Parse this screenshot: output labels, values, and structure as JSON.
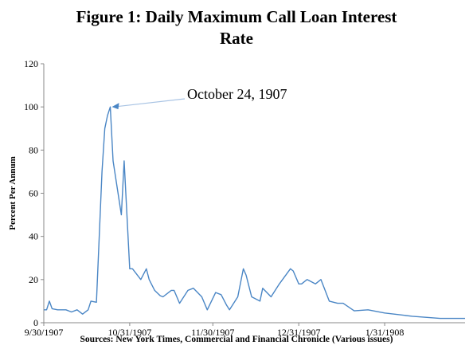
{
  "title_line1": "Figure 1: Daily Maximum Call Loan Interest",
  "title_line2": "Rate",
  "source": "Sources: New York Times, Commercial and Financial Chronicle (Various issues)",
  "chart_data": {
    "type": "line",
    "title": "Figure 1: Daily Maximum Call Loan Interest Rate",
    "xlabel": "",
    "ylabel": "Percent Per Annum",
    "ylim": [
      0,
      120
    ],
    "yticks": [
      0,
      20,
      40,
      60,
      80,
      100,
      120
    ],
    "xlim": [
      "1907-09-30",
      "1908-02-29"
    ],
    "xticks": [
      {
        "date": "1907-09-30",
        "label": "9/30/1907"
      },
      {
        "date": "1907-10-31",
        "label": "10/31/1907"
      },
      {
        "date": "1907-11-30",
        "label": "11/30/1907"
      },
      {
        "date": "1907-12-31",
        "label": "12/31/1907"
      },
      {
        "date": "1908-01-31",
        "label": "1/31/1908"
      }
    ],
    "grid": false,
    "line_color": "#4a86c5",
    "annotation": {
      "text": "October 24, 1907",
      "date": "1907-10-24",
      "value": 100
    },
    "series": [
      {
        "x": [
          "1907-09-30",
          "1907-10-01",
          "1907-10-02",
          "1907-10-03",
          "1907-10-05",
          "1907-10-08",
          "1907-10-10",
          "1907-10-12",
          "1907-10-14",
          "1907-10-16",
          "1907-10-17",
          "1907-10-19",
          "1907-10-21",
          "1907-10-22",
          "1907-10-23",
          "1907-10-24",
          "1907-10-25",
          "1907-10-28",
          "1907-10-29",
          "1907-10-31",
          "1907-11-01",
          "1907-11-04",
          "1907-11-06",
          "1907-11-07",
          "1907-11-09",
          "1907-11-11",
          "1907-11-12",
          "1907-11-15",
          "1907-11-16",
          "1907-11-18",
          "1907-11-21",
          "1907-11-23",
          "1907-11-26",
          "1907-11-28",
          "1907-12-01",
          "1907-12-03",
          "1907-12-05",
          "1907-12-06",
          "1907-12-09",
          "1907-12-11",
          "1907-12-12",
          "1907-12-14",
          "1907-12-17",
          "1907-12-18",
          "1907-12-21",
          "1907-12-24",
          "1907-12-28",
          "1907-12-29",
          "1907-12-31",
          "1908-01-01",
          "1908-01-03",
          "1908-01-06",
          "1908-01-08",
          "1908-01-11",
          "1908-01-14",
          "1908-01-16",
          "1908-01-20",
          "1908-01-25",
          "1908-01-31",
          "1908-02-10",
          "1908-02-20",
          "1908-02-29"
        ],
        "y": [
          6,
          6,
          10,
          6.5,
          6,
          6,
          5,
          6,
          4,
          6,
          10,
          9.5,
          70,
          90,
          96,
          100,
          75,
          50,
          75,
          25,
          25,
          20,
          25,
          20,
          15,
          12.5,
          12,
          15,
          15,
          9,
          15,
          16,
          12,
          6,
          14,
          13,
          8,
          6,
          12,
          25,
          22,
          12,
          10,
          16,
          12,
          18,
          25,
          24,
          18,
          18,
          20,
          18,
          20,
          10,
          9,
          9,
          5.5,
          6,
          4.5,
          3,
          2,
          2
        ]
      }
    ]
  }
}
